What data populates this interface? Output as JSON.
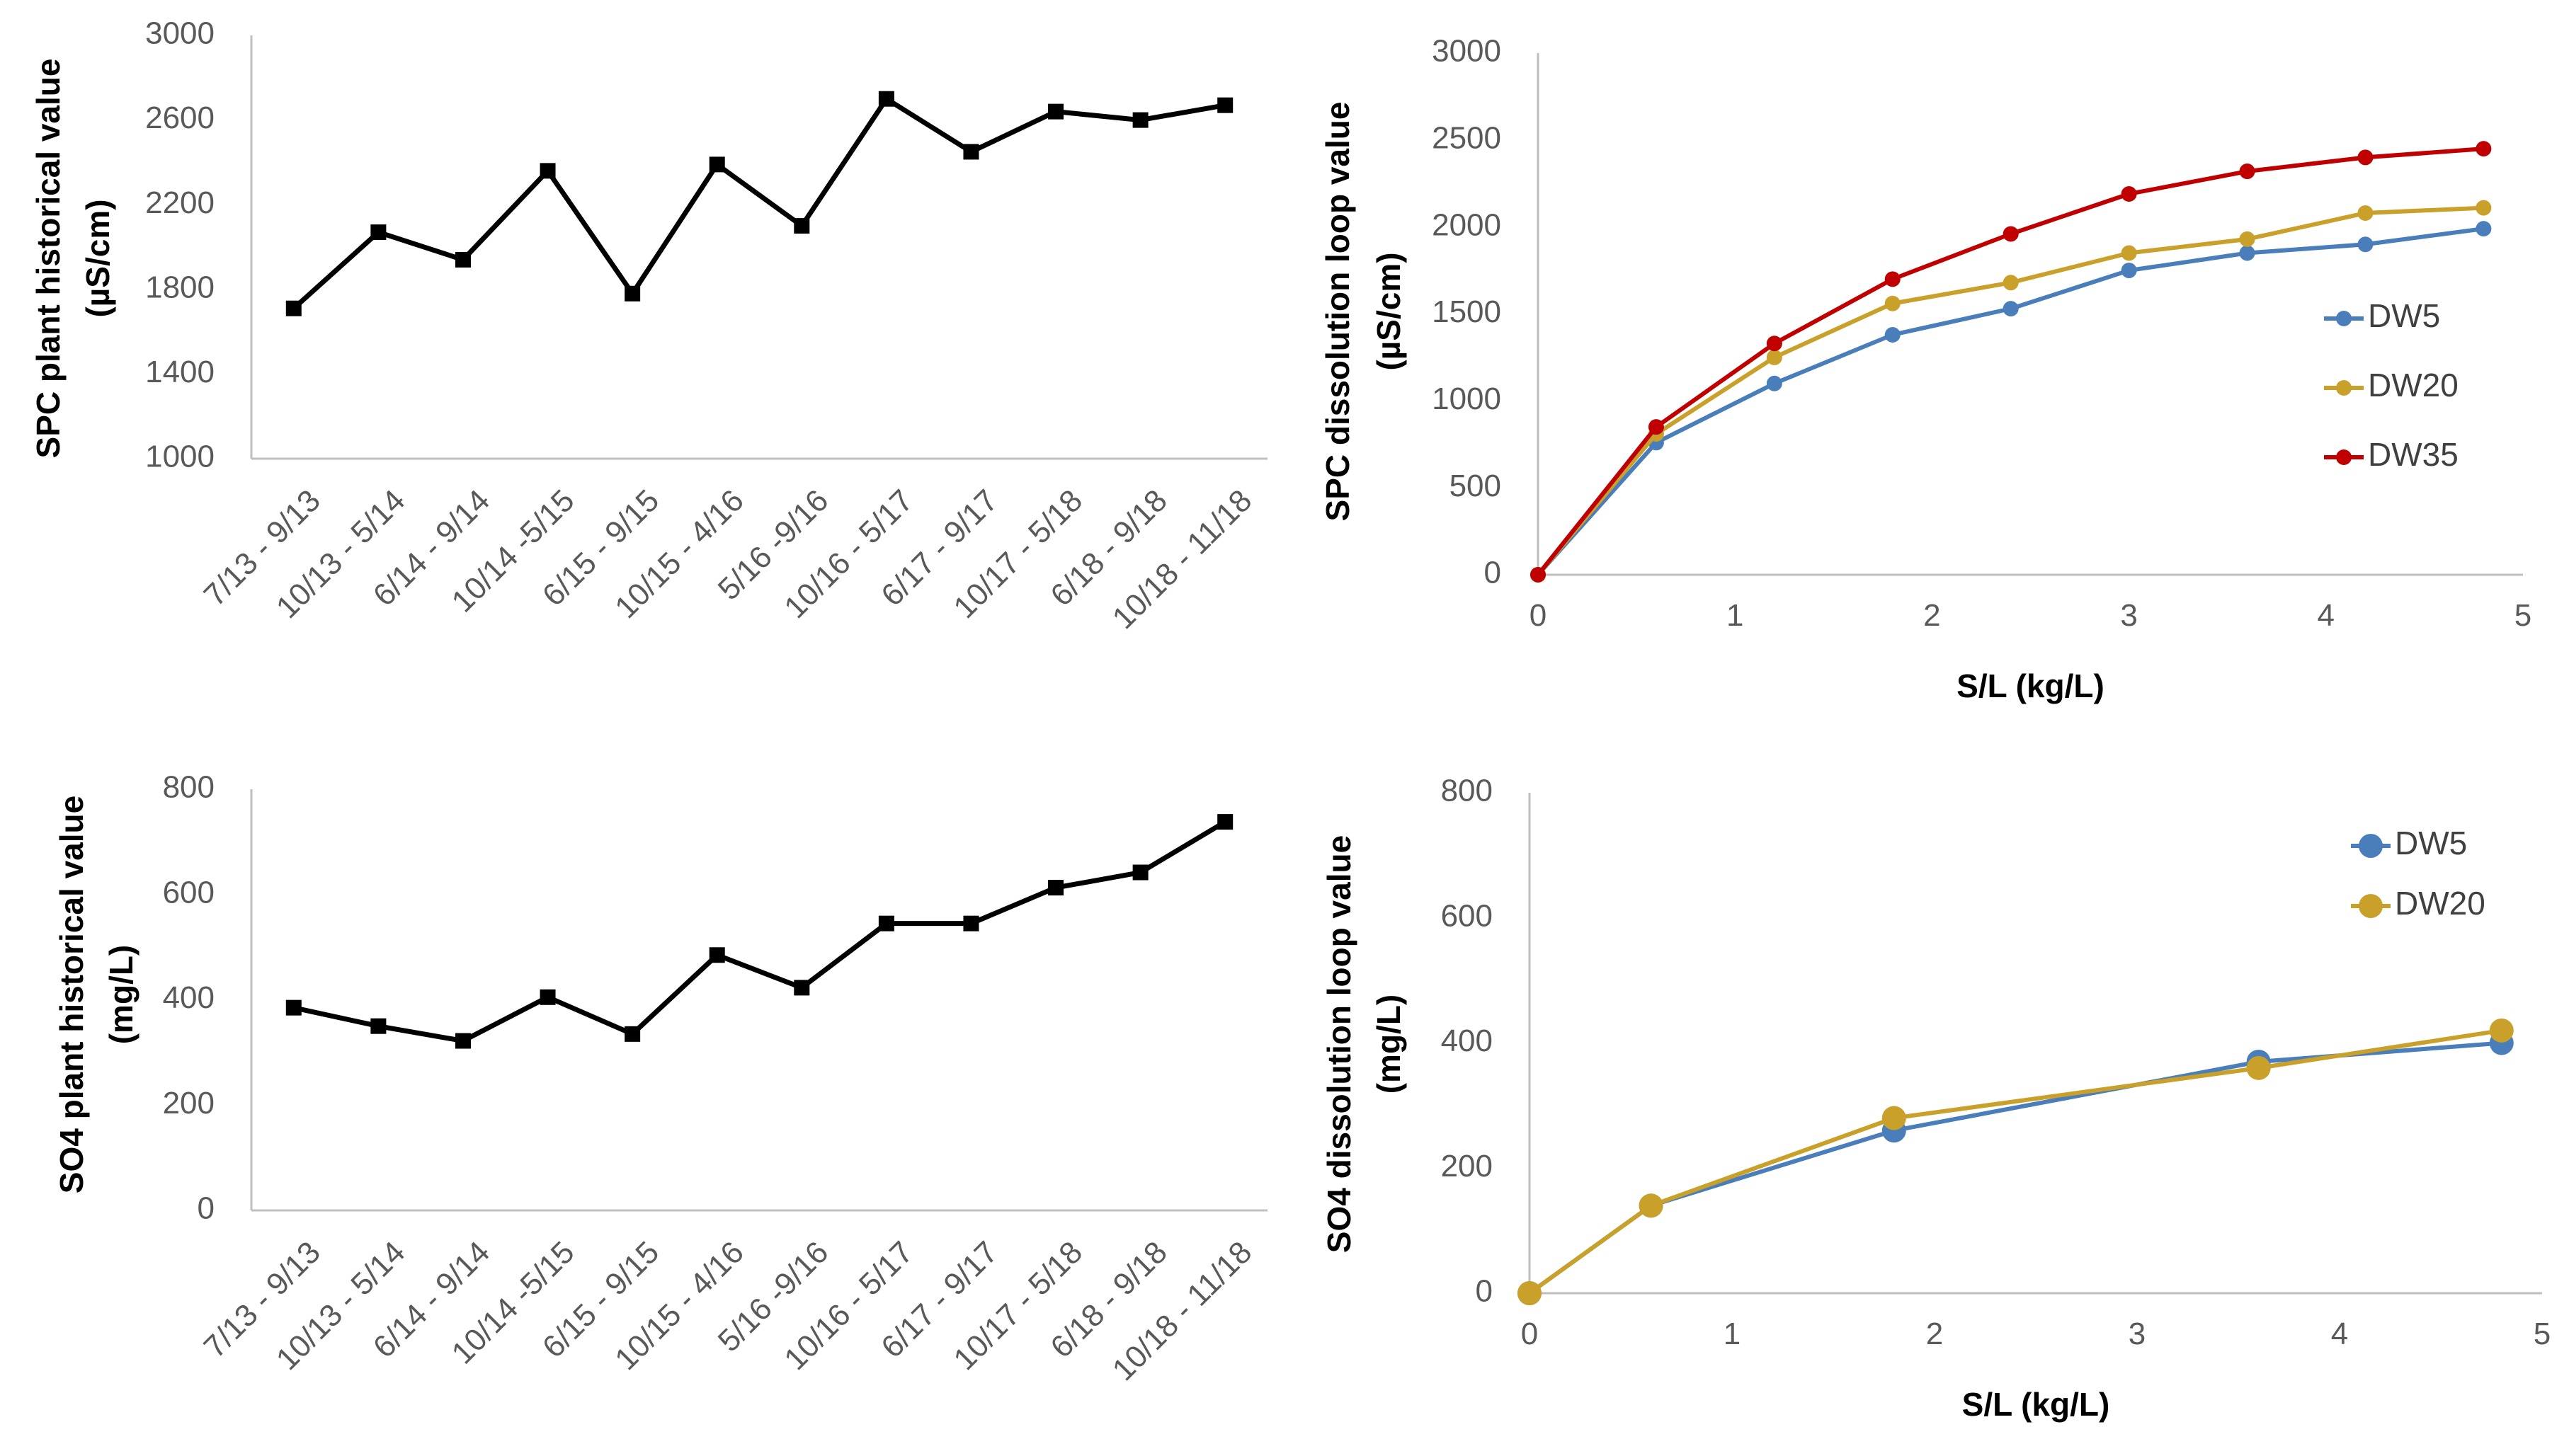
{
  "colors": {
    "DW5": "#4a7ebb",
    "DW20": "#c8a02a",
    "DW35": "#c00000",
    "historical": "#000000"
  },
  "chart_data": [
    {
      "id": "spc-historical",
      "type": "line",
      "title": "",
      "xlabel": "",
      "ylabel_line1": "SPC plant historical value",
      "ylabel_line2": "(µS/cm)",
      "categories": [
        "7/13 - 9/13",
        "10/13 - 5/14",
        "6/14 - 9/14",
        "10/14 -5/15",
        "6/15 - 9/15",
        "10/15 - 4/16",
        "5/16 -9/16",
        "10/16 - 5/17",
        "6/17 - 9/17",
        "10/17 - 5/18",
        "6/18 - 9/18",
        "10/18 - 11/18"
      ],
      "ylim": [
        1000,
        3000
      ],
      "yticks": [
        "1000",
        "1400",
        "1800",
        "2200",
        "2600",
        "3000"
      ],
      "series": [
        {
          "name": "historical",
          "marker": "square",
          "color": "#000000",
          "values": [
            1710,
            2070,
            1940,
            2360,
            1780,
            2390,
            2100,
            2700,
            2450,
            2640,
            2600,
            2670
          ]
        }
      ]
    },
    {
      "id": "spc-dissolution",
      "type": "line",
      "title": "",
      "xlabel": "S/L (kg/L)",
      "ylabel_line1": "SPC dissolution loop value",
      "ylabel_line2": "(µS/cm)",
      "xlim": [
        0,
        5
      ],
      "ylim": [
        0,
        3000
      ],
      "xticks": [
        "0",
        "1",
        "2",
        "3",
        "4",
        "5"
      ],
      "yticks": [
        "0",
        "500",
        "1000",
        "1500",
        "2000",
        "2500",
        "3000"
      ],
      "legend_position": "right",
      "series": [
        {
          "name": "DW5",
          "color": "#4a7ebb",
          "x": [
            0,
            0.6,
            1.2,
            1.8,
            2.4,
            3.0,
            3.6,
            4.2,
            4.8
          ],
          "y": [
            0,
            760,
            1100,
            1380,
            1530,
            1750,
            1850,
            1900,
            1990
          ]
        },
        {
          "name": "DW20",
          "color": "#c8a02a",
          "x": [
            0,
            0.6,
            1.2,
            1.8,
            2.4,
            3.0,
            3.6,
            4.2,
            4.8
          ],
          "y": [
            0,
            810,
            1250,
            1560,
            1680,
            1850,
            1930,
            2080,
            2110
          ]
        },
        {
          "name": "DW35",
          "color": "#c00000",
          "x": [
            0,
            0.6,
            1.2,
            1.8,
            2.4,
            3.0,
            3.6,
            4.2,
            4.8
          ],
          "y": [
            0,
            850,
            1330,
            1700,
            1960,
            2190,
            2320,
            2400,
            2450
          ]
        }
      ]
    },
    {
      "id": "so4-historical",
      "type": "line",
      "title": "",
      "xlabel": "",
      "ylabel_line1": "SO4 plant historical value",
      "ylabel_line2": "(mg/L)",
      "categories": [
        "7/13 - 9/13",
        "10/13 - 5/14",
        "6/14 - 9/14",
        "10/14 -5/15",
        "6/15 - 9/15",
        "10/15 - 4/16",
        "5/16 -9/16",
        "10/16 - 5/17",
        "6/17 - 9/17",
        "10/17 - 5/18",
        "6/18 - 9/18",
        "10/18 - 11/18"
      ],
      "ylim": [
        0,
        800
      ],
      "yticks": [
        "0",
        "200",
        "400",
        "600",
        "800"
      ],
      "series": [
        {
          "name": "historical",
          "marker": "square",
          "color": "#000000",
          "values": [
            385,
            350,
            322,
            405,
            335,
            485,
            423,
            545,
            545,
            613,
            642,
            738
          ]
        }
      ]
    },
    {
      "id": "so4-dissolution",
      "type": "line",
      "title": "",
      "xlabel": "S/L (kg/L)",
      "ylabel_line1": "SO4 dissolution loop value",
      "ylabel_line2": "(mg/L)",
      "xlim": [
        0,
        5
      ],
      "ylim": [
        0,
        800
      ],
      "xticks": [
        "0",
        "1",
        "2",
        "3",
        "4",
        "5"
      ],
      "yticks": [
        "0",
        "200",
        "400",
        "600",
        "800"
      ],
      "legend_position": "top-right",
      "series": [
        {
          "name": "DW5",
          "color": "#4a7ebb",
          "x": [
            0,
            0.6,
            1.8,
            3.6,
            4.8
          ],
          "y": [
            0,
            140,
            260,
            370,
            400
          ]
        },
        {
          "name": "DW20",
          "color": "#c8a02a",
          "x": [
            0,
            0.6,
            1.8,
            3.6,
            4.8
          ],
          "y": [
            0,
            140,
            280,
            360,
            420
          ]
        }
      ]
    }
  ]
}
